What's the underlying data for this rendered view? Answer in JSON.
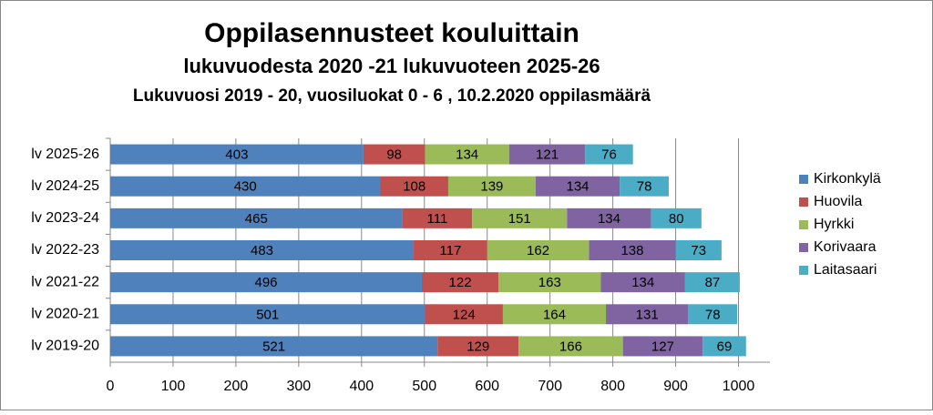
{
  "chart_data": {
    "type": "bar",
    "horizontal": true,
    "stacked": true,
    "title": "Oppilasennusteet kouluittain",
    "subtitle": "lukuvuodesta 2020 -21  lukuvuoteen 2025-26",
    "note": "Lukuvuosi  2019 - 20, vuosiluokat  0 - 6 , 10.2.2020 oppilasmäärä",
    "categories": [
      "lv 2025-26",
      "lv 2024-25",
      "lv 2023-24",
      "lv 2022-23",
      "lv 2021-22",
      "lv 2020-21",
      "lv 2019-20"
    ],
    "series": [
      {
        "name": "Kirkonkylä",
        "color": "#4f81bd",
        "values": [
          403,
          430,
          465,
          483,
          496,
          501,
          521
        ]
      },
      {
        "name": "Huovila",
        "color": "#c0504d",
        "values": [
          98,
          108,
          111,
          117,
          122,
          124,
          129
        ]
      },
      {
        "name": "Hyrkki",
        "color": "#9bbb59",
        "values": [
          134,
          139,
          151,
          162,
          163,
          164,
          166
        ]
      },
      {
        "name": "Korivaara",
        "color": "#8064a2",
        "values": [
          121,
          134,
          134,
          138,
          134,
          131,
          127
        ]
      },
      {
        "name": "Laitasaari",
        "color": "#4bacc6",
        "values": [
          76,
          78,
          80,
          73,
          87,
          78,
          69
        ]
      }
    ],
    "xlim": [
      0,
      1050
    ],
    "xticks": [
      0,
      100,
      200,
      300,
      400,
      500,
      600,
      700,
      800,
      900,
      1000
    ],
    "grid": true,
    "legend": "right"
  }
}
